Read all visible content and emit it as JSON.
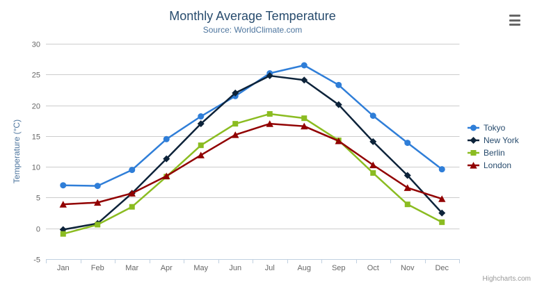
{
  "chart_data": {
    "type": "line",
    "title": "Monthly Average Temperature",
    "subtitle": "Source: WorldClimate.com",
    "categories": [
      "Jan",
      "Feb",
      "Mar",
      "Apr",
      "May",
      "Jun",
      "Jul",
      "Aug",
      "Sep",
      "Oct",
      "Nov",
      "Dec"
    ],
    "series": [
      {
        "name": "Tokyo",
        "color": "#2f7ed8",
        "marker": "circle",
        "values": [
          7.0,
          6.9,
          9.5,
          14.5,
          18.2,
          21.5,
          25.2,
          26.5,
          23.3,
          18.3,
          13.9,
          9.6
        ]
      },
      {
        "name": "New York",
        "color": "#0d233a",
        "marker": "diamond",
        "values": [
          -0.2,
          0.8,
          5.7,
          11.3,
          17.0,
          22.0,
          24.8,
          24.1,
          20.1,
          14.1,
          8.6,
          2.5
        ]
      },
      {
        "name": "Berlin",
        "color": "#8bbc21",
        "marker": "square",
        "values": [
          -0.9,
          0.6,
          3.5,
          8.4,
          13.5,
          17.0,
          18.6,
          17.9,
          14.3,
          9.0,
          3.9,
          1.0
        ]
      },
      {
        "name": "London",
        "color": "#910000",
        "marker": "triangle",
        "values": [
          3.9,
          4.2,
          5.7,
          8.5,
          11.9,
          15.2,
          17.0,
          16.6,
          14.2,
          10.3,
          6.6,
          4.8
        ]
      }
    ],
    "xlabel": "",
    "ylabel": "Temperature (°C)",
    "ylim": [
      -5,
      30
    ],
    "yticks": [
      -5,
      0,
      5,
      10,
      15,
      20,
      25,
      30
    ],
    "grid": true,
    "legend_position": "right"
  },
  "export_menu": {
    "icon": "hamburger-menu-icon"
  },
  "credits": {
    "label": "Highcharts.com"
  },
  "theme": {
    "background": "#ffffff",
    "title_color": "#274b6d",
    "subtitle_color": "#4d759e",
    "axis_label_color": "#666666",
    "axis_title_color": "#4d759e",
    "grid_color": "#cccccc",
    "axis_line_color": "#c0d0e0",
    "legend_text_color": "#274b6d",
    "credits_color": "#999999",
    "menu_icon_color": "#666666"
  }
}
